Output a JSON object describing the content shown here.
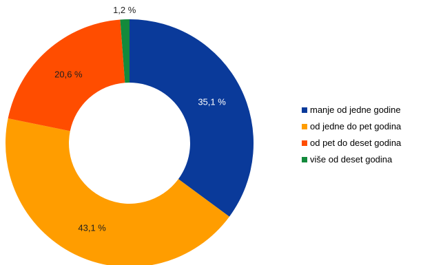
{
  "chart_data": {
    "type": "pie",
    "variant": "donut",
    "legend_position": "right",
    "slices": [
      {
        "label": "manje od jedne godine",
        "value": 35.1,
        "value_label": "35,1 %",
        "color": "#0a3a9a",
        "label_color": "#ffffff"
      },
      {
        "label": "od jedne do pet godina",
        "value": 43.1,
        "value_label": "43,1 %",
        "color": "#ff9d00",
        "label_color": "#1f1f1f"
      },
      {
        "label": "od pet do deset godina",
        "value": 20.6,
        "value_label": "20,6 %",
        "color": "#ff4d00",
        "label_color": "#1f1f1f"
      },
      {
        "label": "više od deset godina",
        "value": 1.2,
        "value_label": "1,2 %",
        "color": "#138a3c",
        "label_color": "#1f1f1f"
      }
    ]
  }
}
